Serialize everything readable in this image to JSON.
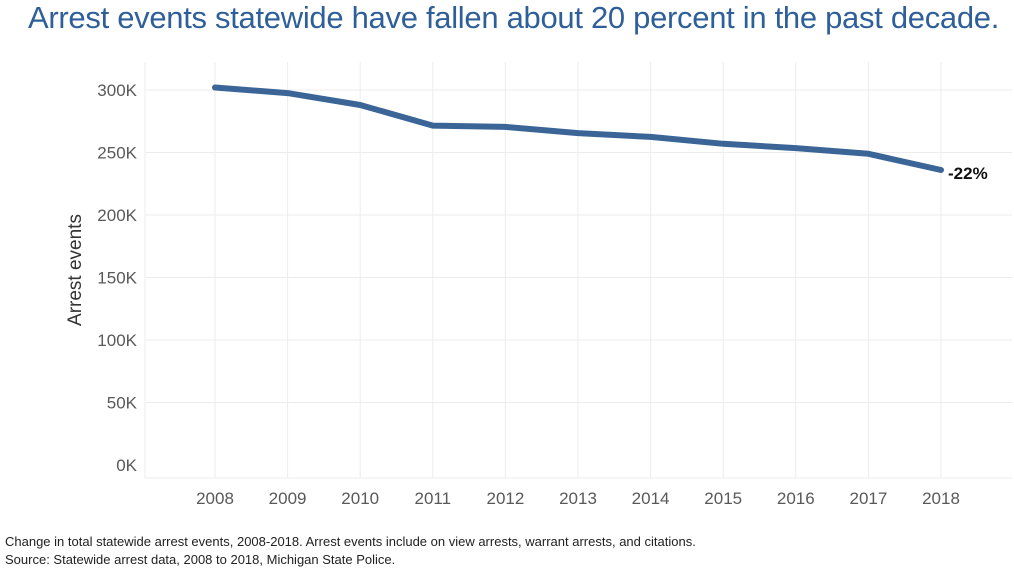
{
  "title": "Arrest events statewide have fallen about 20 percent in the past decade.",
  "footnotes": {
    "line1": "Change in total statewide arrest events, 2008-2018. Arrest events include on view arrests, warrant arrests, and citations.",
    "line2": "Source: Statewide arrest data, 2008 to 2018, Michigan State Police."
  },
  "colors": {
    "line": "#3a6596",
    "title": "#2f5f9a",
    "grid": "#ececec"
  },
  "chart_data": {
    "type": "line",
    "title": "Arrest events statewide have fallen about 20 percent in the past decade.",
    "xlabel": "",
    "ylabel": "Arrest events",
    "x": [
      "2008",
      "2009",
      "2010",
      "2011",
      "2012",
      "2013",
      "2014",
      "2015",
      "2016",
      "2017",
      "2018"
    ],
    "series": [
      {
        "values": [
          302000,
          297500,
          288000,
          271500,
          270500,
          265500,
          262500,
          257000,
          253500,
          249000,
          236000
        ]
      }
    ],
    "ylim": [
      0,
      300000
    ],
    "yticks": [
      0,
      50000,
      100000,
      150000,
      200000,
      250000,
      300000
    ],
    "ytick_labels": [
      "0K",
      "50K",
      "100K",
      "150K",
      "200K",
      "250K",
      "300K"
    ],
    "annotations": [
      {
        "x": "2018",
        "text": "-22%"
      }
    ],
    "grid": true,
    "legend": "none"
  }
}
